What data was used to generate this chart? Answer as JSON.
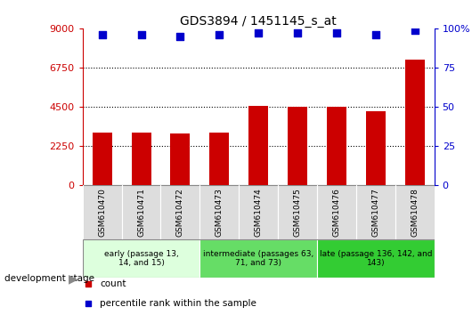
{
  "title": "GDS3894 / 1451145_s_at",
  "categories": [
    "GSM610470",
    "GSM610471",
    "GSM610472",
    "GSM610473",
    "GSM610474",
    "GSM610475",
    "GSM610476",
    "GSM610477",
    "GSM610478"
  ],
  "counts": [
    3000,
    3050,
    2950,
    3000,
    4550,
    4500,
    4500,
    4250,
    7200
  ],
  "percentile_ranks": [
    96,
    96,
    95,
    96,
    97,
    97,
    97,
    96,
    99
  ],
  "bar_color": "#cc0000",
  "dot_color": "#0000cc",
  "ylim_left": [
    0,
    9000
  ],
  "ylim_right": [
    0,
    100
  ],
  "yticks_left": [
    0,
    2250,
    4500,
    6750,
    9000
  ],
  "yticks_right": [
    0,
    25,
    50,
    75,
    100
  ],
  "ytick_labels_left": [
    "0",
    "2250",
    "4500",
    "6750",
    "9000"
  ],
  "ytick_labels_right": [
    "0",
    "25",
    "50",
    "75",
    "100%"
  ],
  "groups": [
    {
      "label": "early (passage 13,\n14, and 15)",
      "start": 0,
      "end": 3,
      "color": "#ddffdd"
    },
    {
      "label": "intermediate (passages 63,\n71, and 73)",
      "start": 3,
      "end": 6,
      "color": "#66dd66"
    },
    {
      "label": "late (passage 136, 142, and\n143)",
      "start": 6,
      "end": 9,
      "color": "#33cc33"
    }
  ],
  "dev_stage_label": "development stage",
  "legend_items": [
    {
      "label": "count",
      "color": "#cc0000"
    },
    {
      "label": "percentile rank within the sample",
      "color": "#0000cc"
    }
  ],
  "axis_left_color": "#cc0000",
  "axis_right_color": "#0000cc",
  "bar_width": 0.5,
  "dot_size": 35,
  "xtick_bg_color": "#dddddd",
  "grid_linestyle": "dotted"
}
